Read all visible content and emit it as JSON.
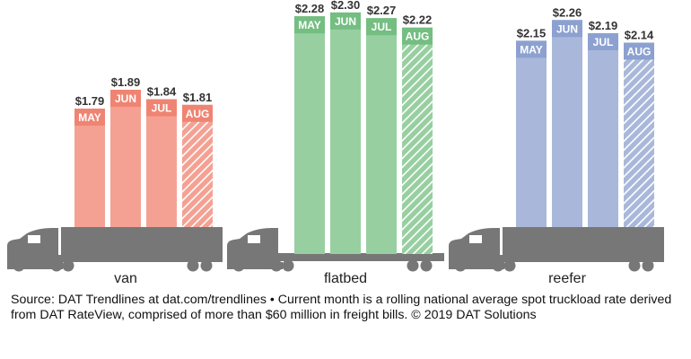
{
  "chart_data": {
    "type": "bar",
    "categories": [
      "MAY",
      "JUN",
      "JUL",
      "AUG"
    ],
    "hatched_category": "AUG",
    "unit": "$",
    "groups": [
      {
        "name": "van",
        "values": [
          1.79,
          1.89,
          1.84,
          1.81
        ],
        "labels": [
          "$1.79",
          "$1.89",
          "$1.84",
          "$1.81"
        ],
        "color": "#f4a193",
        "band_color": "#ef8473"
      },
      {
        "name": "flatbed",
        "values": [
          2.28,
          2.3,
          2.27,
          2.22
        ],
        "labels": [
          "$2.28",
          "$2.30",
          "$2.27",
          "$2.22"
        ],
        "color": "#98cfa1",
        "band_color": "#74be81"
      },
      {
        "name": "reefer",
        "values": [
          2.15,
          2.26,
          2.19,
          2.14
        ],
        "labels": [
          "$2.15",
          "$2.26",
          "$2.19",
          "$2.14"
        ],
        "color": "#a9b8da",
        "band_color": "#8ca1d0"
      }
    ],
    "truck_color": "#777777"
  },
  "source": "Source: DAT Trendlines at dat.com/trendlines • Current month is a rolling national average spot truckload rate derived from DAT RateView, comprised of more than $60 million in freight bills. © 2019 DAT Solutions"
}
